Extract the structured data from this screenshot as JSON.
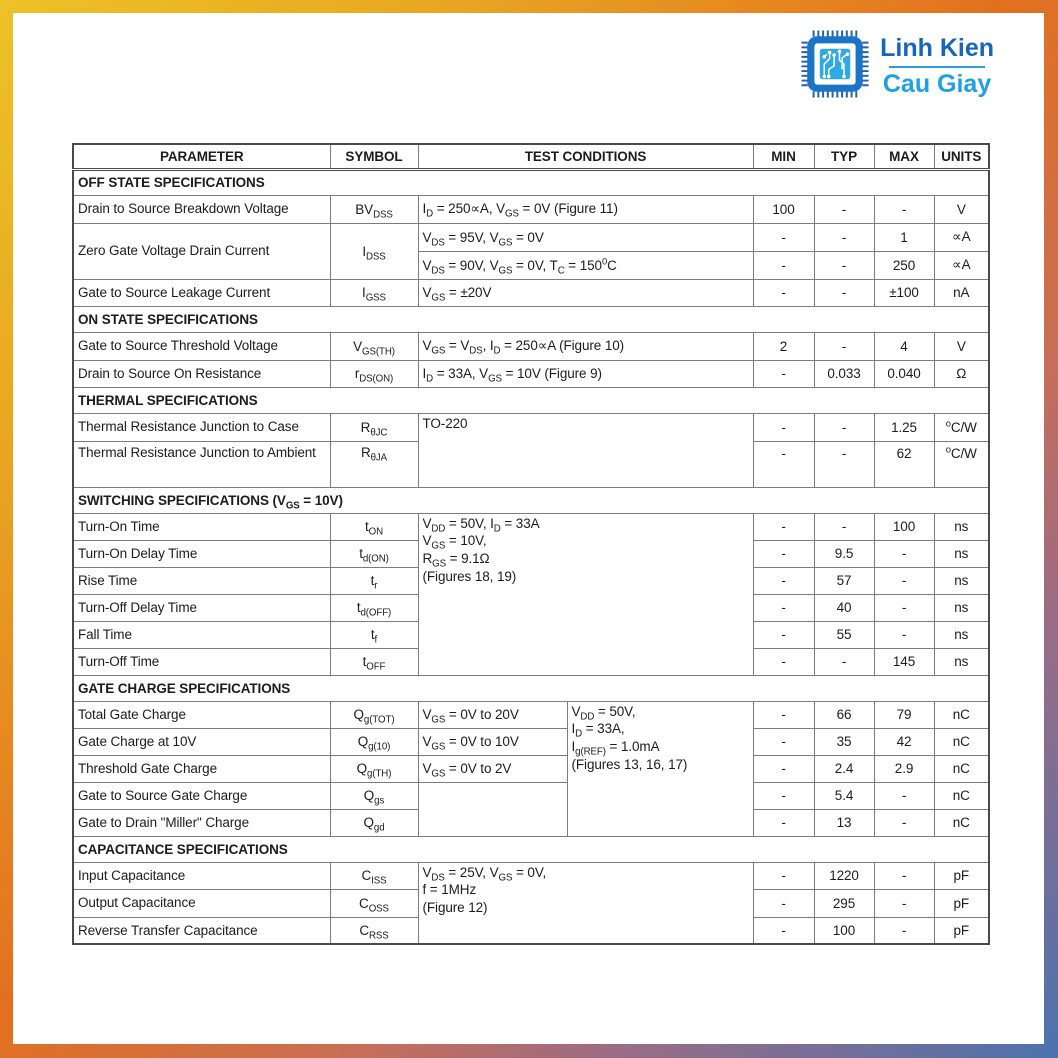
{
  "logo": {
    "line1": "Linh Kien",
    "line2": "Cau Giay",
    "icon": "chip-icon",
    "colors": {
      "line1_blue": "#1566BE",
      "line2_blue": "#1FA0E4",
      "chip_border_blue": "#1B74C5",
      "chip_inner_blue": "#2FA9E1"
    }
  },
  "frame_colors": {
    "yellow": "#EDC227",
    "orange": "#E2701F",
    "mauve": "#9E6C83",
    "blue": "#4C72AE"
  },
  "header": {
    "columns": [
      "PARAMETER",
      "SYMBOL",
      "TEST CONDITIONS",
      "MIN",
      "TYP",
      "MAX",
      "UNITS"
    ]
  },
  "sections": [
    {
      "title": "OFF STATE SPECIFICATIONS",
      "rows": [
        {
          "parameter": "Drain to Source Breakdown Voltage",
          "symbol": "BV~DSS~",
          "conditions": "I~D~ = 250∝A, V~GS~ = 0V (Figure 11)",
          "min": "100",
          "typ": "-",
          "max": "-",
          "units": "V"
        },
        {
          "parameter": "Zero Gate Voltage Drain Current",
          "symbol": "I~DSS~",
          "conditions": "V~DS~ = 95V, V~GS~ = 0V",
          "min": "-",
          "typ": "-",
          "max": "1",
          "units": "∝A"
        },
        {
          "conditions": "V~DS~ = 90V, V~GS~ = 0V, T~C~ = 150^0^C",
          "min": "-",
          "typ": "-",
          "max": "250",
          "units": "∝A"
        },
        {
          "parameter": "Gate to Source Leakage Current",
          "symbol": "I~GSS~",
          "conditions": "V~GS~ = ±20V",
          "min": "-",
          "typ": "-",
          "max": "±100",
          "units": "nA"
        }
      ]
    },
    {
      "title": "ON STATE SPECIFICATIONS",
      "rows": [
        {
          "parameter": "Gate to Source Threshold Voltage",
          "symbol": "V~GS(TH)~",
          "conditions": "V~GS~ = V~DS~, I~D~ = 250∝A (Figure 10)",
          "min": "2",
          "typ": "-",
          "max": "4",
          "units": "V"
        },
        {
          "parameter": "Drain to Source On Resistance",
          "symbol": "r~DS(ON)~",
          "conditions": "I~D~ = 33A, V~GS~ = 10V (Figure 9)",
          "min": "-",
          "typ": "0.033",
          "max": "0.040",
          "units": "Ω"
        }
      ]
    },
    {
      "title": "THERMAL SPECIFICATIONS",
      "rows": [
        {
          "parameter": "Thermal Resistance Junction to Case",
          "symbol": "R~θJC~",
          "conditions": "TO-220",
          "min": "-",
          "typ": "-",
          "max": "1.25",
          "units": "^o^C/W"
        },
        {
          "parameter": "Thermal Resistance Junction to Ambient",
          "symbol": "R~θJA~",
          "min": "-",
          "typ": "-",
          "max": "62",
          "units": "^o^C/W"
        }
      ]
    },
    {
      "title": "SWITCHING SPECIFICATIONS (V~GS~ = 10V)",
      "rows": [
        {
          "parameter": "Turn-On Time",
          "symbol": "t~ON~",
          "conditions": "V~DD~ = 50V, I~D~ = 33A\nV~GS~ = 10V,\nR~GS~ = 9.1Ω\n(Figures 18, 19)",
          "min": "-",
          "typ": "-",
          "max": "100",
          "units": "ns"
        },
        {
          "parameter": "Turn-On Delay Time",
          "symbol": "t~d(ON)~",
          "min": "-",
          "typ": "9.5",
          "max": "-",
          "units": "ns"
        },
        {
          "parameter": "Rise Time",
          "symbol": "t~r~",
          "min": "-",
          "typ": "57",
          "max": "-",
          "units": "ns"
        },
        {
          "parameter": "Turn-Off Delay Time",
          "symbol": "t~d(OFF)~",
          "min": "-",
          "typ": "40",
          "max": "-",
          "units": "ns"
        },
        {
          "parameter": "Fall Time",
          "symbol": "t~f~",
          "min": "-",
          "typ": "55",
          "max": "-",
          "units": "ns"
        },
        {
          "parameter": "Turn-Off Time",
          "symbol": "t~OFF~",
          "min": "-",
          "typ": "-",
          "max": "145",
          "units": "ns"
        }
      ]
    },
    {
      "title": "GATE CHARGE SPECIFICATIONS",
      "rows": [
        {
          "parameter": "Total Gate Charge",
          "symbol": "Q~g(TOT)~",
          "conditions_a": "V~GS~ = 0V to 20V",
          "conditions_b": "V~DD~ = 50V,\nI~D~ = 33A,\nI~g(REF)~ = 1.0mA\n(Figures 13, 16, 17)",
          "min": "-",
          "typ": "66",
          "max": "79",
          "units": "nC"
        },
        {
          "parameter": "Gate Charge at 10V",
          "symbol": "Q~g(10)~",
          "conditions_a": "V~GS~ = 0V to 10V",
          "min": "-",
          "typ": "35",
          "max": "42",
          "units": "nC"
        },
        {
          "parameter": "Threshold Gate Charge",
          "symbol": "Q~g(TH)~",
          "conditions_a": "V~GS~ = 0V to 2V",
          "min": "-",
          "typ": "2.4",
          "max": "2.9",
          "units": "nC"
        },
        {
          "parameter": "Gate to Source Gate Charge",
          "symbol": "Q~gs~",
          "conditions_a": "",
          "min": "-",
          "typ": "5.4",
          "max": "-",
          "units": "nC"
        },
        {
          "parameter": "Gate to Drain \"Miller\" Charge",
          "symbol": "Q~gd~",
          "min": "-",
          "typ": "13",
          "max": "-",
          "units": "nC"
        }
      ]
    },
    {
      "title": "CAPACITANCE SPECIFICATIONS",
      "rows": [
        {
          "parameter": "Input Capacitance",
          "symbol": "C~ISS~",
          "conditions": "V~DS~ = 25V, V~GS~ = 0V,\nf = 1MHz\n(Figure 12)",
          "min": "-",
          "typ": "1220",
          "max": "-",
          "units": "pF"
        },
        {
          "parameter": "Output Capacitance",
          "symbol": "C~OSS~",
          "min": "-",
          "typ": "295",
          "max": "-",
          "units": "pF"
        },
        {
          "parameter": "Reverse Transfer Capacitance",
          "symbol": "C~RSS~",
          "min": "-",
          "typ": "100",
          "max": "-",
          "units": "pF"
        }
      ]
    }
  ]
}
